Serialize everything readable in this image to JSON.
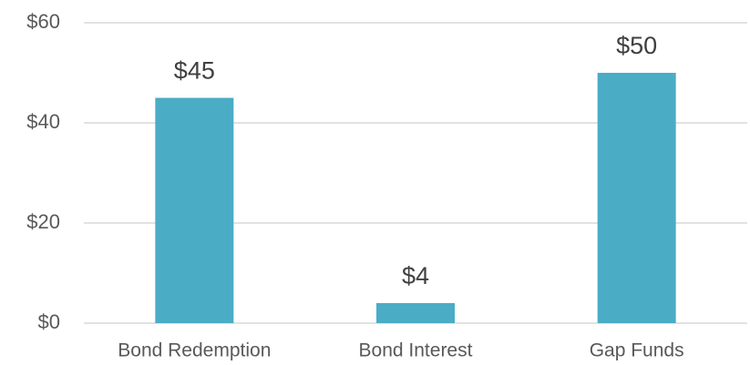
{
  "chart_data": {
    "type": "bar",
    "categories": [
      "Bond Redemption",
      "Bond Interest",
      "Gap Funds"
    ],
    "values": [
      45,
      4,
      50
    ],
    "value_labels": [
      "$45",
      "$4",
      "$50"
    ],
    "color": "#4bacc6",
    "ylim": [
      0,
      60
    ],
    "yticks": [
      {
        "value": 0,
        "label": "$0"
      },
      {
        "value": 20,
        "label": "$20"
      },
      {
        "value": 40,
        "label": "$40"
      },
      {
        "value": 60,
        "label": "$60"
      }
    ],
    "grid": true
  }
}
